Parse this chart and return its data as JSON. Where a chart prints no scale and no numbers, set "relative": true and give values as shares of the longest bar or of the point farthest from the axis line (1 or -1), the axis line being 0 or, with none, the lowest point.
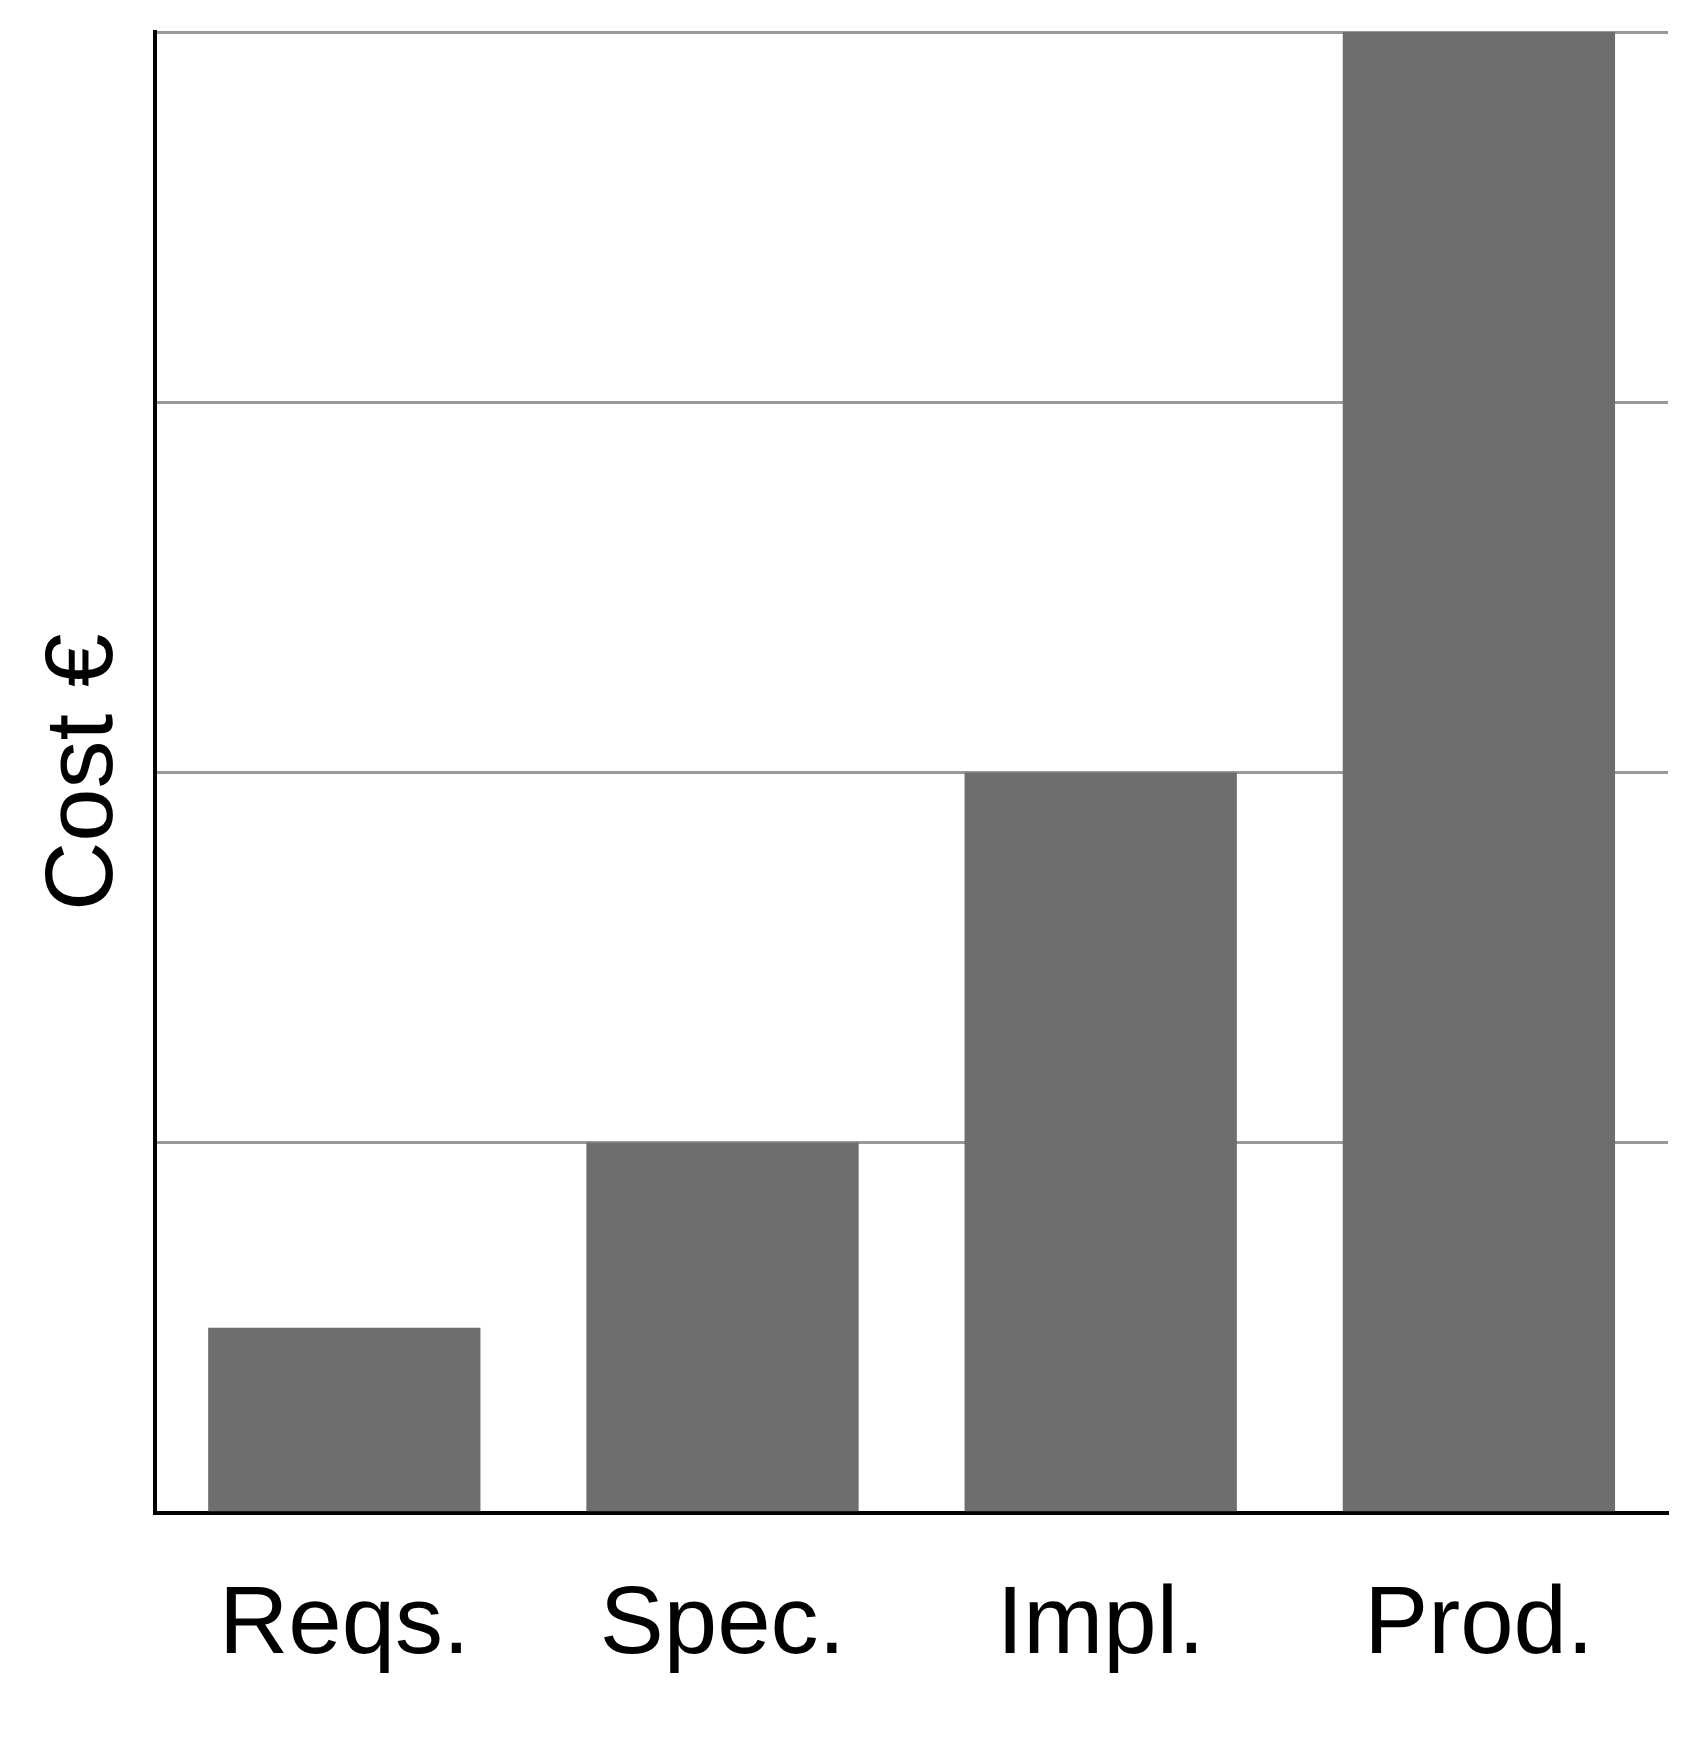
{
  "chart_data": {
    "type": "bar",
    "ylabel": "Cost €",
    "categories": [
      "Reqs.",
      "Spec.",
      "Impl.",
      "Prod."
    ],
    "values": [
      0.125,
      0.25,
      0.5,
      1
    ],
    "color": "#6e6e6e",
    "relative": true,
    "grid": "y",
    "legend": false
  }
}
